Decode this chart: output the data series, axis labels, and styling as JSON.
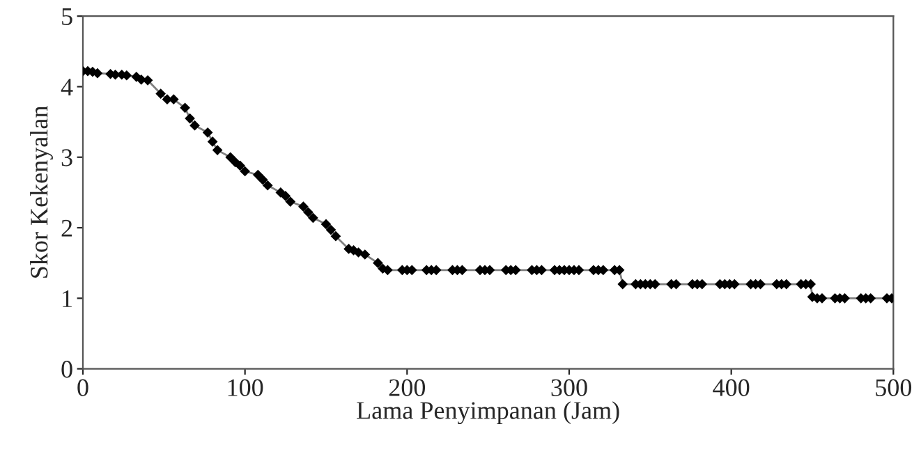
{
  "chart_data": {
    "type": "line",
    "xlabel": "Lama Penyimpanan (Jam)",
    "ylabel": "Skor Kekenyalan",
    "xlim": [
      0,
      500
    ],
    "xticks": [
      0,
      100,
      200,
      300,
      400,
      500
    ],
    "ylim": [
      0,
      5
    ],
    "yticks": [
      0,
      1,
      2,
      3,
      4,
      5
    ],
    "grid": false,
    "marker": "diamond",
    "line_style": "solid",
    "series": [
      {
        "color": "#000000",
        "x": [
          0,
          3,
          6,
          9,
          17,
          20,
          24,
          27,
          33,
          36,
          40,
          48,
          52,
          56,
          63,
          66,
          69,
          77,
          80,
          83,
          91,
          94,
          97,
          100,
          108,
          111,
          114,
          122,
          125,
          128,
          136,
          139,
          142,
          150,
          153,
          156,
          164,
          167,
          170,
          174,
          182,
          185,
          188,
          197,
          200,
          203,
          212,
          215,
          218,
          228,
          231,
          234,
          245,
          248,
          251,
          261,
          264,
          267,
          277,
          280,
          283,
          291,
          294,
          297,
          300,
          303,
          306,
          315,
          318,
          321,
          328,
          331,
          333,
          341,
          344,
          347,
          350,
          353,
          363,
          366,
          376,
          379,
          382,
          393,
          396,
          399,
          402,
          412,
          415,
          418,
          428,
          431,
          434,
          443,
          446,
          449,
          450,
          453,
          456,
          464,
          467,
          470,
          480,
          483,
          486,
          496,
          499
        ],
        "values": [
          4.22,
          4.22,
          4.21,
          4.19,
          4.18,
          4.17,
          4.17,
          4.16,
          4.14,
          4.1,
          4.09,
          3.9,
          3.82,
          3.82,
          3.7,
          3.55,
          3.45,
          3.35,
          3.22,
          3.1,
          3.0,
          2.93,
          2.88,
          2.8,
          2.75,
          2.68,
          2.6,
          2.5,
          2.45,
          2.37,
          2.3,
          2.22,
          2.14,
          2.05,
          1.97,
          1.88,
          1.7,
          1.68,
          1.65,
          1.62,
          1.5,
          1.42,
          1.4,
          1.4,
          1.4,
          1.4,
          1.4,
          1.4,
          1.4,
          1.4,
          1.4,
          1.4,
          1.4,
          1.4,
          1.4,
          1.4,
          1.4,
          1.4,
          1.4,
          1.4,
          1.4,
          1.4,
          1.4,
          1.4,
          1.4,
          1.4,
          1.4,
          1.4,
          1.4,
          1.4,
          1.4,
          1.4,
          1.2,
          1.2,
          1.2,
          1.2,
          1.2,
          1.2,
          1.2,
          1.2,
          1.2,
          1.2,
          1.2,
          1.2,
          1.2,
          1.2,
          1.2,
          1.2,
          1.2,
          1.2,
          1.2,
          1.2,
          1.2,
          1.2,
          1.2,
          1.2,
          1.02,
          1.0,
          1.0,
          1.0,
          1.0,
          1.0,
          1.0,
          1.0,
          1.0,
          1.0,
          1.0
        ]
      }
    ]
  }
}
